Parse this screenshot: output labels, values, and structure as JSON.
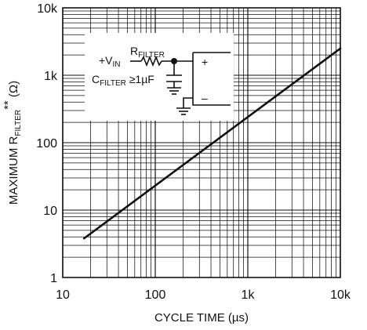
{
  "chart_data": {
    "type": "line",
    "title": "",
    "xlabel": "CYCLE TIME (µs)",
    "ylabel": {
      "main": "MAXIMUM R",
      "sub": "FILTER",
      "sup": "**",
      "unit": " (Ω)"
    },
    "x_scale": "log",
    "y_scale": "log",
    "xlim": [
      10,
      10000
    ],
    "ylim": [
      1,
      10000
    ],
    "x_ticks": [
      {
        "value": 10,
        "label": "10"
      },
      {
        "value": 100,
        "label": "100"
      },
      {
        "value": 1000,
        "label": "1k"
      },
      {
        "value": 10000,
        "label": "10k"
      }
    ],
    "y_ticks": [
      {
        "value": 1,
        "label": "1"
      },
      {
        "value": 10,
        "label": "10"
      },
      {
        "value": 100,
        "label": "100"
      },
      {
        "value": 1000,
        "label": "1k"
      },
      {
        "value": 10000,
        "label": "10k"
      }
    ],
    "grid": true,
    "series": [
      {
        "x": [
          17,
          10000
        ],
        "y": [
          3.8,
          2500
        ]
      }
    ],
    "inset_schematic": {
      "r_label": {
        "main": "R",
        "sub": "FILTER"
      },
      "vin_label": {
        "main": "+V",
        "sub": "IN"
      },
      "c_label": {
        "main": "C",
        "sub": "FILTER",
        "suffix": " ≥1µF"
      },
      "plus": "+",
      "minus": "–"
    }
  }
}
